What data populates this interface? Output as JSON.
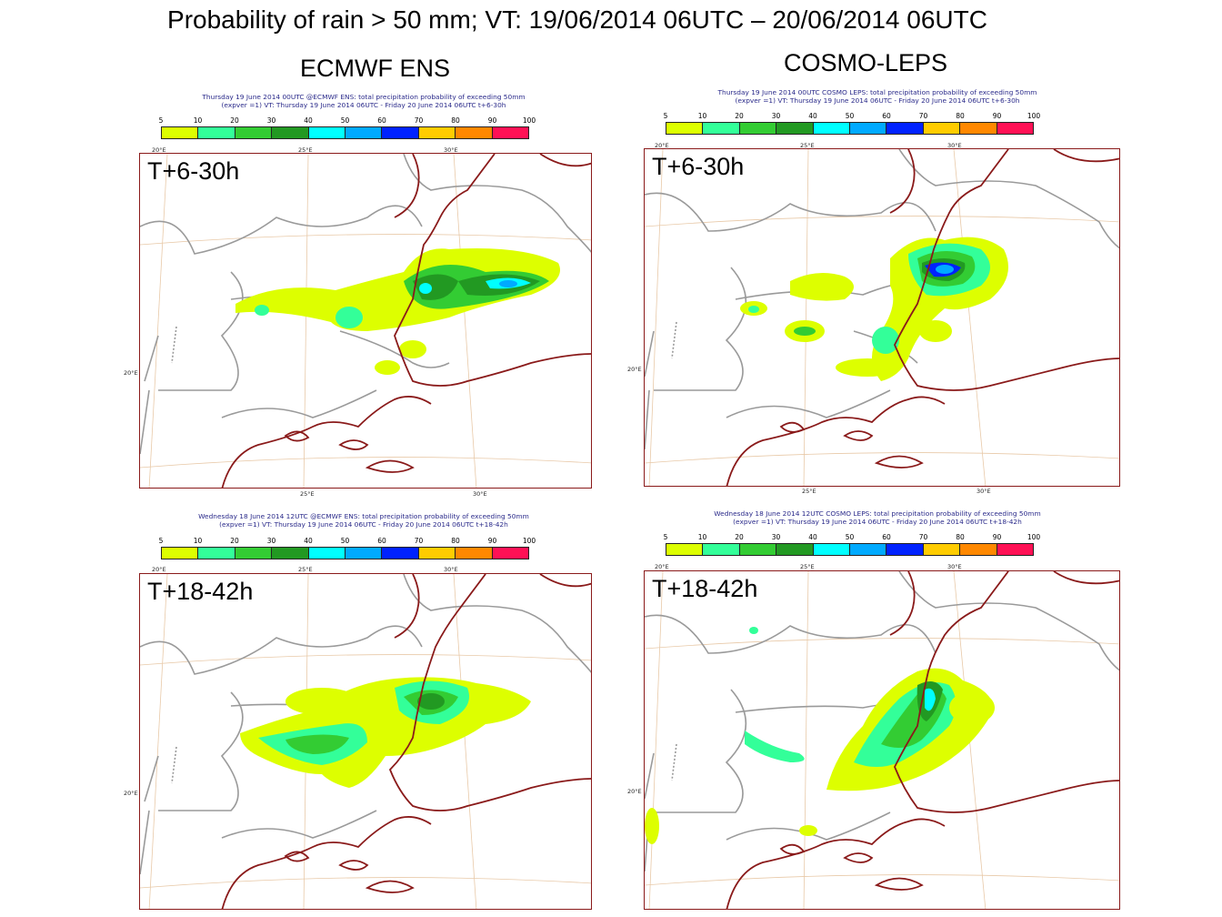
{
  "title": "Probability of rain > 50 mm; VT: 19/06/2014 06UTC – 20/06/2014 06UTC",
  "columns": {
    "left": "ECMWF ENS",
    "right": "COSMO-LEPS"
  },
  "colorbar": {
    "labels": [
      "5",
      "10",
      "20",
      "30",
      "40",
      "50",
      "60",
      "70",
      "80",
      "90",
      "100"
    ],
    "colors": [
      "#ddff00",
      "#33ff99",
      "#33cc33",
      "#229922",
      "#00ffff",
      "#00aaff",
      "#0022ff",
      "#ffcc00",
      "#ff8800",
      "#ff1155"
    ]
  },
  "axis": {
    "lon20": "20°E",
    "lon25": "25°E",
    "lon30": "30°E",
    "lat20": "20°E"
  },
  "panels": {
    "tl": {
      "header1": "Thursday 19 June 2014 00UTC @ECMWF ENS: total precipitation  probability of exceeding 50mm",
      "header2": "(expver =1) VT: Thursday 19 June 2014 06UTC - Friday 20 June 2014 06UTC  t+6-30h",
      "label": "T+6-30h"
    },
    "tr": {
      "header1": "Thursday 19 June 2014 00UTC COSMO LEPS: total precipitation  probability of exceeding 50mm",
      "header2": "(expver =1) VT: Thursday 19 June 2014 06UTC - Friday 20 June 2014 06UTC  t+6-30h",
      "label": "T+6-30h"
    },
    "bl": {
      "header1": "Wednesday 18 June 2014 12UTC @ECMWF ENS: total precipitation  probability of exceeding 50mm",
      "header2": "(expver =1) VT: Thursday 19 June 2014 06UTC - Friday 20 June 2014 06UTC  t+18-42h",
      "label": "T+18-42h"
    },
    "br": {
      "header1": "Wednesday 18 June 2014 12UTC COSMO LEPS: total precipitation  probability of exceeding 50mm",
      "header2": "(expver =1) VT: Thursday 19 June 2014 06UTC - Friday 20 June 2014 06UTC  t+18-42h",
      "label": "T+18-42h"
    }
  }
}
